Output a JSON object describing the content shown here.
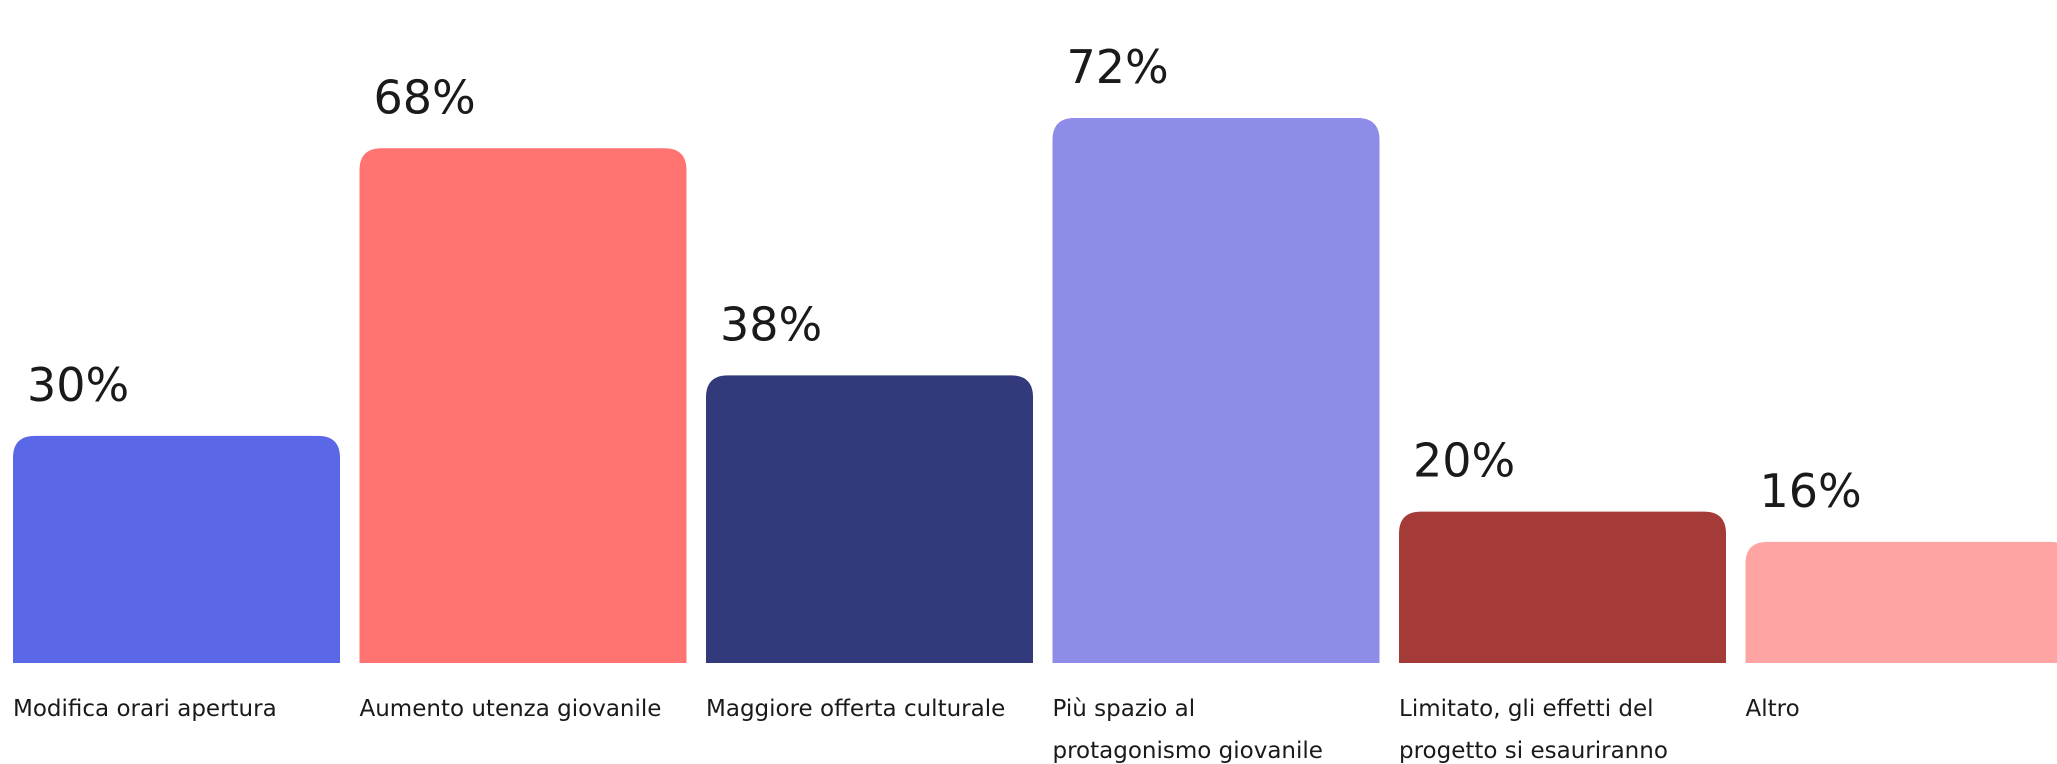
{
  "chart_data": {
    "type": "bar",
    "categories": [
      [
        "Modifica orari apertura"
      ],
      [
        "Aumento utenza giovanile"
      ],
      [
        "Maggiore offerta culturale"
      ],
      [
        "Più spazio al",
        "protagonismo giovanile"
      ],
      [
        "Limitato, gli effetti del",
        "progetto si esauriranno"
      ],
      [
        "Altro"
      ]
    ],
    "values": [
      30,
      68,
      38,
      72,
      20,
      16
    ],
    "value_labels": [
      "30%",
      "68%",
      "38%",
      "72%",
      "20%",
      "16%"
    ],
    "colors": [
      "#5a67e6",
      "#ff7471",
      "#333a7b",
      "#8e8ce9",
      "#a53b38",
      "#ffa3a3"
    ],
    "ylim": [
      0,
      75
    ],
    "grid": false
  }
}
